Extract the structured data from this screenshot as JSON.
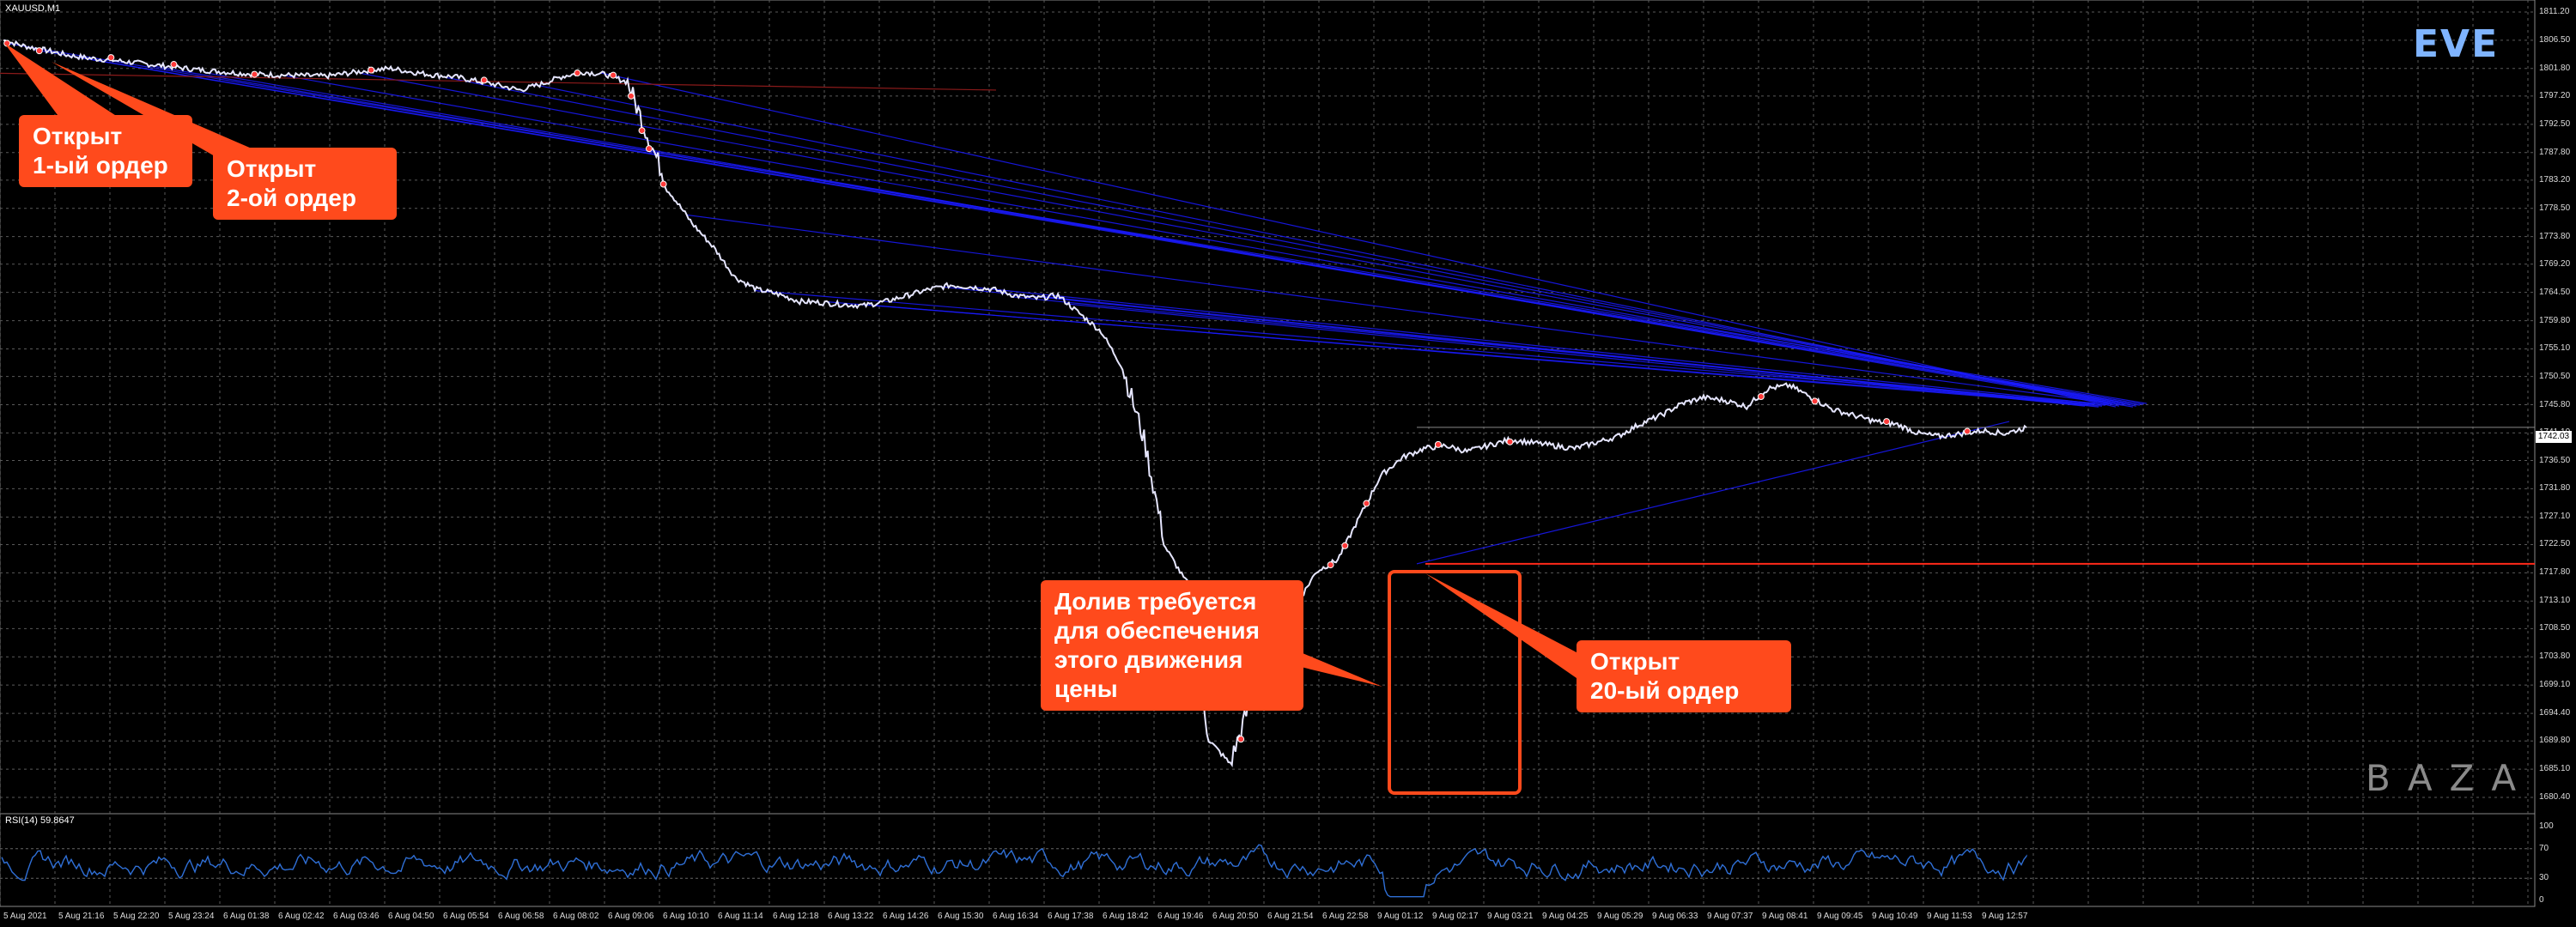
{
  "window": {
    "symbol_label": "XAUUSD,M1"
  },
  "rsi": {
    "label": "RSI(14) 59.8647",
    "levels": [
      "100",
      "70",
      "30",
      "0"
    ]
  },
  "price_scale": {
    "ticks": [
      "1811.20",
      "1806.50",
      "1801.80",
      "1797.20",
      "1792.50",
      "1787.80",
      "1783.20",
      "1778.50",
      "1773.80",
      "1769.20",
      "1764.50",
      "1759.80",
      "1755.10",
      "1750.50",
      "1745.80",
      "1741.10",
      "1736.50",
      "1731.80",
      "1727.10",
      "1722.50",
      "1717.80",
      "1713.10",
      "1708.50",
      "1703.80",
      "1699.10",
      "1694.40",
      "1689.80",
      "1685.10",
      "1680.40"
    ],
    "current_price": "1742.03"
  },
  "time_scale": {
    "labels": [
      "5 Aug 2021",
      "5 Aug 21:16",
      "5 Aug 22:20",
      "5 Aug 23:24",
      "6 Aug 01:38",
      "6 Aug 02:42",
      "6 Aug 03:46",
      "6 Aug 04:50",
      "6 Aug 05:54",
      "6 Aug 06:58",
      "6 Aug 08:02",
      "6 Aug 09:06",
      "6 Aug 10:10",
      "6 Aug 11:14",
      "6 Aug 12:18",
      "6 Aug 13:22",
      "6 Aug 14:26",
      "6 Aug 15:30",
      "6 Aug 16:34",
      "6 Aug 17:38",
      "6 Aug 18:42",
      "6 Aug 19:46",
      "6 Aug 20:50",
      "6 Aug 21:54",
      "6 Aug 22:58",
      "9 Aug 01:12",
      "9 Aug 02:17",
      "9 Aug 03:21",
      "9 Aug 04:25",
      "9 Aug 05:29",
      "9 Aug 06:33",
      "9 Aug 07:37",
      "9 Aug 08:41",
      "9 Aug 09:45",
      "9 Aug 10:49",
      "9 Aug 11:53",
      "9 Aug 12:57"
    ]
  },
  "logos": {
    "top": "EVE",
    "bottom": "BAZA"
  },
  "callouts": {
    "first_order": "Открыт\n1-ый ордер",
    "second_order": "Открыт\n2-ой ордер",
    "topup": "Долив требуется\nдля обеспечения\nэтого движения\nцены",
    "twentieth_order": "Открыт\n20-ый ордер"
  },
  "colors": {
    "background": "#000000",
    "grid": "#5a5a5a",
    "price_line": "#e6e6ff",
    "order_lines": "#1a1aff",
    "callout": "#ff4a1c",
    "rsi_line": "#2f6fd6",
    "stop_line": "#ff2a1a"
  },
  "chart_data": {
    "type": "line",
    "title": "XAUUSD,M1",
    "ylabel": "",
    "xlabel": "",
    "ylim": [
      1680.4,
      1811.2
    ],
    "series": [
      {
        "values": [
          1806.5,
          1805.5,
          1804.8,
          1804.0,
          1803.5,
          1803.2,
          1802.8,
          1802.4,
          1802.0,
          1801.6,
          1801.3,
          1801.0,
          1800.8,
          1800.7,
          1800.6,
          1800.5,
          1801.0,
          1801.5,
          1801.8,
          1801.2,
          1800.7,
          1800.4,
          1799.7,
          1799.0,
          1798.2,
          1799.2,
          1800.5,
          1801.2,
          1800.8,
          1799.5,
          1790.0,
          1781.0,
          1776.0,
          1772.0,
          1767.0,
          1765.0,
          1764.2,
          1763.0,
          1762.8,
          1762.5,
          1762.3,
          1763.0,
          1764.0,
          1765.0,
          1765.7,
          1765.4,
          1765.0,
          1764.0,
          1763.5,
          1764.0,
          1761.0,
          1758.0,
          1752.0,
          1740.0,
          1722.0,
          1716.0,
          1690.0,
          1686.0,
          1697.0,
          1703.0,
          1712.0,
          1718.0,
          1720.0,
          1727.0,
          1734.0,
          1737.0,
          1738.5,
          1739.0,
          1738.0,
          1739.0,
          1740.0,
          1739.5,
          1739.0,
          1738.5,
          1739.5,
          1740.5,
          1742.5,
          1744.0,
          1746.0,
          1747.0,
          1746.5,
          1745.5,
          1748.5,
          1749.0,
          1747.0,
          1745.0,
          1744.0,
          1743.0,
          1742.5,
          1741.0,
          1740.5,
          1741.0,
          1741.5,
          1741.0,
          1742.0
        ],
        "x_range": [
          "5 Aug 2021",
          "9 Aug 12:57"
        ]
      }
    ],
    "rsi": {
      "name": "RSI(14)",
      "last": 59.8647,
      "ylim": [
        0,
        100
      ],
      "levels": [
        30,
        70
      ]
    },
    "horizontal_levels": [
      1742.03,
      1719.3
    ],
    "annotations": [
      "Открыт 1-ый ордер",
      "Открыт 2-ой ордер",
      "Долив требуется для обеспечения этого движения цены",
      "Открыт 20-ый ордер"
    ]
  }
}
